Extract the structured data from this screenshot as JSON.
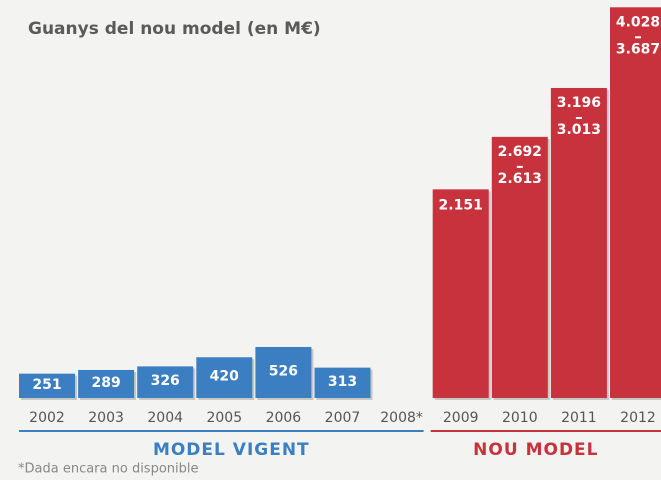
{
  "chart_data": {
    "type": "bar",
    "title": "Guanys del nou model (en M€)",
    "categories": [
      "2002",
      "2003",
      "2004",
      "2005",
      "2006",
      "2007",
      "2008*",
      "2009",
      "2010",
      "2011",
      "2012"
    ],
    "series": [
      {
        "name": "MODEL VIGENT",
        "color": "#3b7fc2",
        "values": [
          251,
          289,
          326,
          420,
          526,
          313,
          null,
          null,
          null,
          null,
          null
        ]
      },
      {
        "name": "NOU MODEL",
        "color": "#c8323c",
        "values": [
          null,
          null,
          null,
          null,
          null,
          null,
          null,
          2151,
          2692,
          3196,
          4028
        ],
        "value_labels": [
          null,
          null,
          null,
          null,
          null,
          null,
          null,
          "2.151",
          "2.692",
          "3.196",
          "4.028"
        ],
        "low_values": [
          null,
          null,
          null,
          null,
          null,
          null,
          null,
          null,
          2613,
          3013,
          3687
        ],
        "low_value_labels": [
          null,
          null,
          null,
          null,
          null,
          null,
          null,
          null,
          "2.613",
          "3.013",
          "3.687"
        ]
      }
    ],
    "note": "*Dada encara no disponible"
  }
}
